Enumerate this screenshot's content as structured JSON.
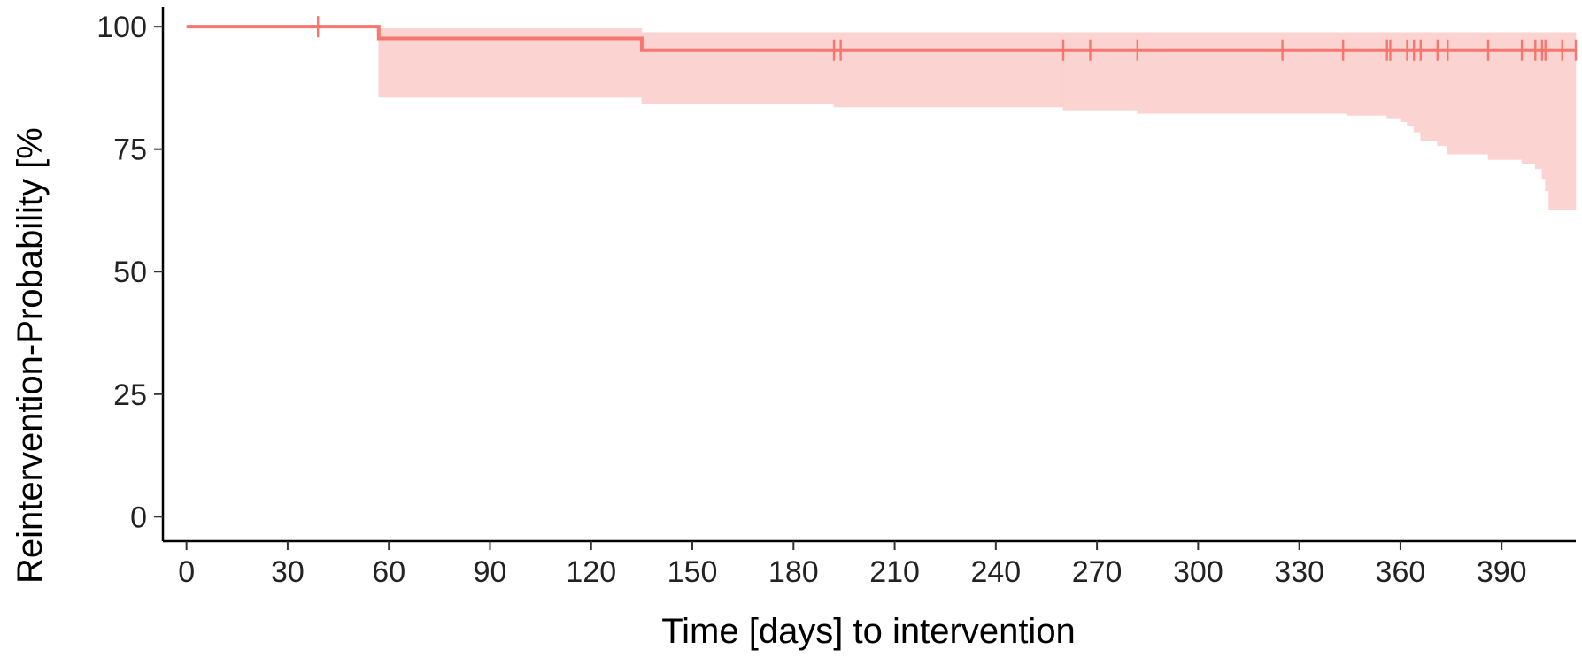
{
  "chart_data": {
    "type": "line",
    "subtype": "kaplan-meier step curve with confidence band and censor marks",
    "title": "",
    "xlabel": "Time [days] to intervention",
    "ylabel": "Reintervention-Probability [%",
    "xlim": [
      -7,
      412
    ],
    "ylim": [
      -5,
      104
    ],
    "x_ticks": [
      0,
      30,
      60,
      90,
      120,
      150,
      180,
      210,
      240,
      270,
      300,
      330,
      360,
      390
    ],
    "y_ticks": [
      0,
      25,
      50,
      75,
      100
    ],
    "grid": false,
    "legend": "none",
    "series": [
      {
        "color": "#f8766d",
        "band_color": "#fbd3d1",
        "steps": [
          {
            "x": 0,
            "y": 100
          },
          {
            "x": 57,
            "y": 97.6
          },
          {
            "x": 135,
            "y": 95.2
          }
        ],
        "x_end": 412,
        "ci_lower": [
          {
            "x": 57,
            "y": 85.6
          },
          {
            "x": 135,
            "y": 84.2
          },
          {
            "x": 192,
            "y": 83.6
          },
          {
            "x": 260,
            "y": 83.0
          },
          {
            "x": 282,
            "y": 82.3
          },
          {
            "x": 344,
            "y": 81.9
          },
          {
            "x": 356,
            "y": 81.2
          },
          {
            "x": 360,
            "y": 80.6
          },
          {
            "x": 362,
            "y": 79.8
          },
          {
            "x": 364,
            "y": 78.5
          },
          {
            "x": 366,
            "y": 76.8
          },
          {
            "x": 371,
            "y": 75.7
          },
          {
            "x": 374,
            "y": 74.0
          },
          {
            "x": 386,
            "y": 72.9
          },
          {
            "x": 396,
            "y": 72.0
          },
          {
            "x": 400,
            "y": 71.0
          },
          {
            "x": 402,
            "y": 69.0
          },
          {
            "x": 403,
            "y": 66.5
          },
          {
            "x": 404,
            "y": 62.6
          }
        ],
        "ci_upper": [
          {
            "x": 57,
            "y": 99.6
          },
          {
            "x": 135,
            "y": 98.8
          }
        ],
        "censor_times": [
          39,
          192,
          194,
          260,
          268,
          282,
          325,
          343,
          356,
          357,
          362,
          364,
          366,
          371,
          374,
          386,
          396,
          400,
          402,
          403,
          408,
          412
        ]
      }
    ]
  }
}
